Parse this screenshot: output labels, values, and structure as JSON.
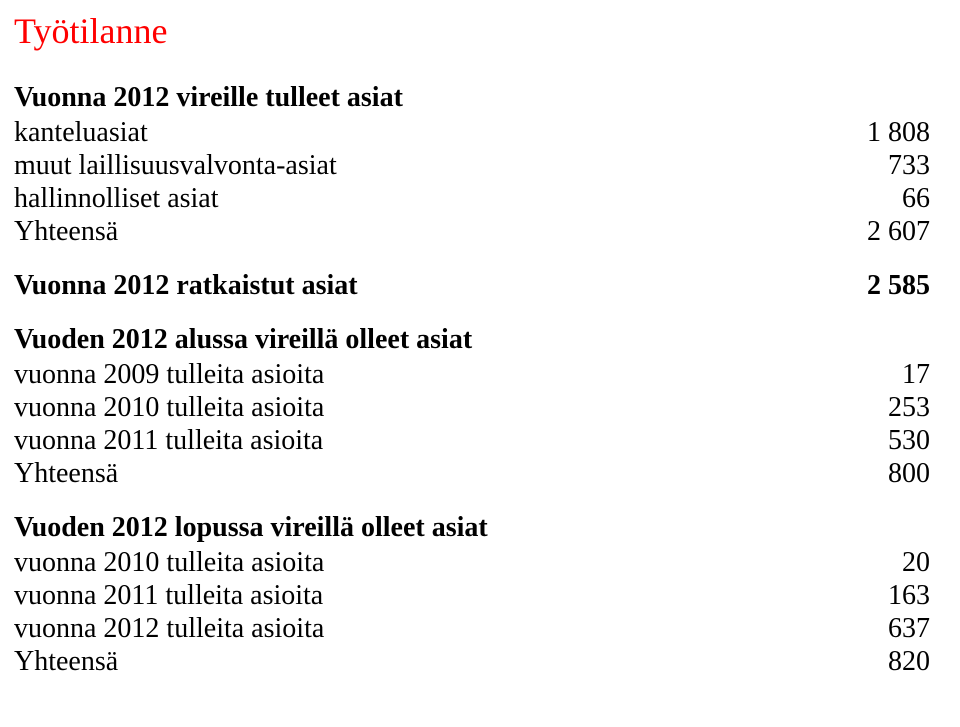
{
  "title": "Työtilanne",
  "colors": {
    "title": "#ff0000",
    "text": "#000000",
    "background": "#ffffff"
  },
  "typography": {
    "family": "Times New Roman",
    "title_fontsize": 36,
    "body_fontsize": 28,
    "heading_weight": "bold"
  },
  "sections": [
    {
      "heading": "Vuonna 2012 vireille tulleet asiat",
      "heading_value": "",
      "rows": [
        {
          "label": "kanteluasiat",
          "value": "1 808"
        },
        {
          "label": "muut laillisuusvalvonta-asiat",
          "value": "733"
        },
        {
          "label": "hallinnolliset asiat",
          "value": "66"
        },
        {
          "label": "Yhteensä",
          "value": "2 607"
        }
      ]
    },
    {
      "heading": "Vuonna 2012 ratkaistut asiat",
      "heading_value": "2 585",
      "rows": []
    },
    {
      "heading": "Vuoden 2012 alussa vireillä olleet asiat",
      "heading_value": "",
      "rows": [
        {
          "label": "vuonna 2009 tulleita asioita",
          "value": "17"
        },
        {
          "label": "vuonna 2010 tulleita asioita",
          "value": "253"
        },
        {
          "label": "vuonna 2011 tulleita asioita",
          "value": "530"
        },
        {
          "label": "Yhteensä",
          "value": "800"
        }
      ]
    },
    {
      "heading": "Vuoden 2012 lopussa vireillä olleet asiat",
      "heading_value": "",
      "rows": [
        {
          "label": "vuonna 2010 tulleita asioita",
          "value": "20"
        },
        {
          "label": "vuonna 2011 tulleita asioita",
          "value": "163"
        },
        {
          "label": "vuonna 2012 tulleita asioita",
          "value": "637"
        },
        {
          "label": "Yhteensä",
          "value": "820"
        }
      ]
    }
  ]
}
